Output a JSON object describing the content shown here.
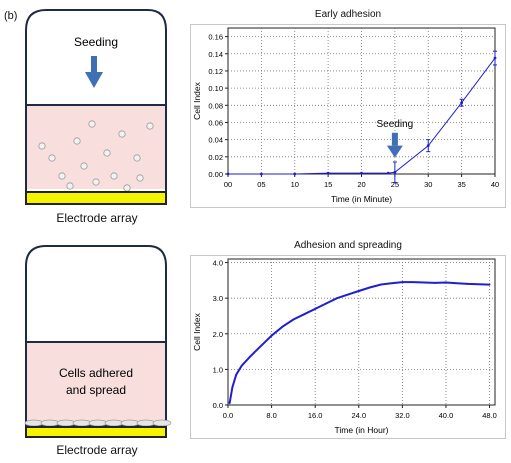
{
  "panel_label": "(b)",
  "top_well": {
    "seeding_label": "Seeding",
    "caption": "Electrode array"
  },
  "bottom_well": {
    "label_line1": "Cells adhered",
    "label_line2": "and spread",
    "caption": "Electrode array"
  },
  "colors": {
    "well_border": "#1f2a44",
    "medium": "#f9dede",
    "electrode": "#f4f400",
    "arrow": "#3f6fb5",
    "series": "#1f1fd0",
    "plot_frame": "#c8c8c8",
    "grid": "#777777"
  },
  "chart_data": [
    {
      "type": "line",
      "title": "Early adhesion",
      "xlabel": "Time (in Minute)",
      "ylabel": "Cell Index",
      "xlim": [
        0,
        40
      ],
      "ylim": [
        0,
        0.17
      ],
      "x_ticks": [
        0,
        5,
        10,
        15,
        20,
        25,
        30,
        35,
        40
      ],
      "x_tick_labels": [
        "00",
        "05",
        "10",
        "15",
        "20",
        "25",
        "30",
        "35",
        "40"
      ],
      "y_ticks": [
        0,
        0.02,
        0.04,
        0.06,
        0.08,
        0.1,
        0.12,
        0.14,
        0.16
      ],
      "y_tick_labels": [
        "0.00",
        "0.02",
        "0.04",
        "0.06",
        "0.08",
        "0.10",
        "0.12",
        "0.14",
        "0.16"
      ],
      "grid": true,
      "x": [
        0,
        5,
        10,
        15,
        20,
        24,
        25,
        30,
        35,
        40
      ],
      "y": [
        0,
        0,
        0,
        0.001,
        0.001,
        0.001,
        0.002,
        0.033,
        0.083,
        0.135
      ],
      "error": [
        0,
        0,
        0,
        0,
        0,
        0,
        0.012,
        0.007,
        0.004,
        0.008
      ],
      "annotation": {
        "text": "Seeding",
        "x": 25
      }
    },
    {
      "type": "line",
      "title": "Adhesion and spreading",
      "xlabel": "Time (in Hour)",
      "ylabel": "Cell Index",
      "xlim": [
        0,
        49
      ],
      "ylim": [
        0,
        4.1
      ],
      "x_ticks": [
        0,
        8,
        16,
        24,
        32,
        40,
        48
      ],
      "x_tick_labels": [
        "0.0",
        "8.0",
        "16.0",
        "24.0",
        "32.0",
        "40.0",
        "48.0"
      ],
      "y_ticks": [
        0,
        1,
        2,
        3,
        4
      ],
      "y_tick_labels": [
        "0.0",
        "1.0",
        "2.0",
        "3.0",
        "4.0"
      ],
      "grid": true,
      "x": [
        0.3,
        0.8,
        1.5,
        2.5,
        4,
        6,
        8,
        10,
        12,
        14,
        16,
        18,
        20,
        22,
        24,
        26,
        28,
        30,
        32,
        34,
        36,
        38,
        40,
        42,
        44,
        46,
        48
      ],
      "y": [
        0.05,
        0.5,
        0.85,
        1.1,
        1.35,
        1.65,
        1.95,
        2.2,
        2.4,
        2.55,
        2.7,
        2.85,
        3.0,
        3.1,
        3.2,
        3.3,
        3.38,
        3.42,
        3.45,
        3.45,
        3.44,
        3.43,
        3.44,
        3.42,
        3.4,
        3.39,
        3.38
      ]
    }
  ]
}
